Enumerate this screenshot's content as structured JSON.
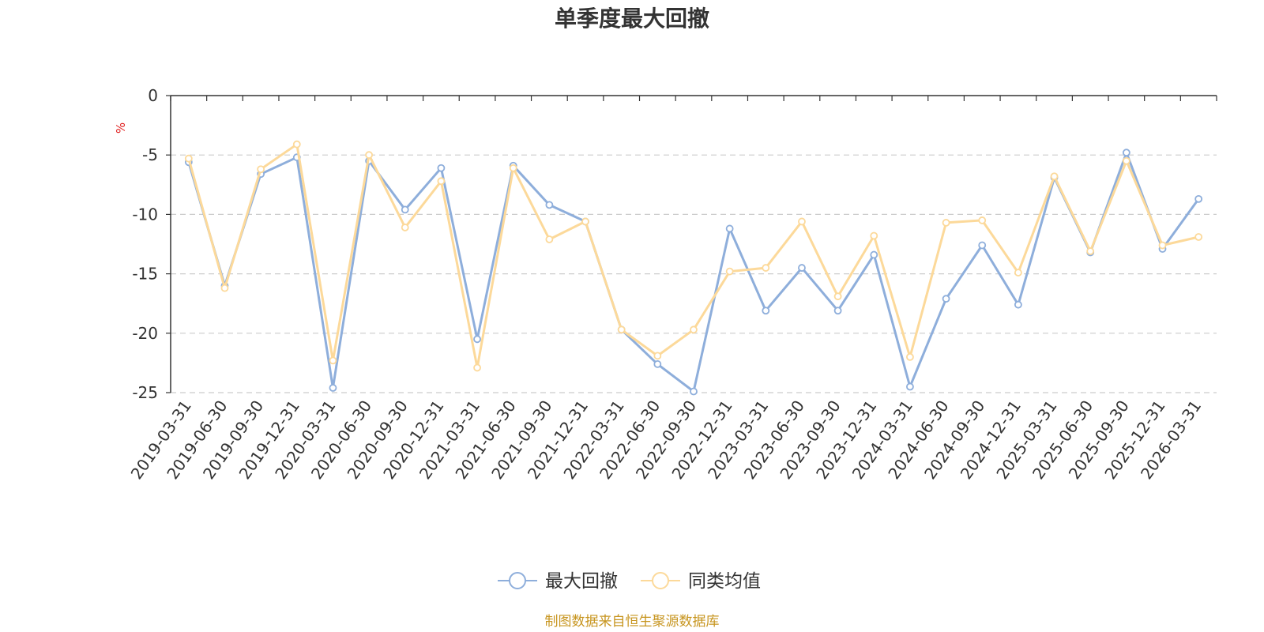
{
  "chart_data": {
    "type": "line",
    "title": "单季度最大回撤",
    "ylabel": "%",
    "xlabel": "",
    "ylim": [
      -25,
      0
    ],
    "yticks": [
      0,
      -5,
      -10,
      -15,
      -20,
      -25
    ],
    "grid": true,
    "legend_position": "bottom-center",
    "categories": [
      "2019-03-31",
      "2019-06-30",
      "2019-09-30",
      "2019-12-31",
      "2020-03-31",
      "2020-06-30",
      "2020-09-30",
      "2020-12-31",
      "2021-03-31",
      "2021-06-30",
      "2021-09-30",
      "2021-12-31",
      "2022-03-31",
      "2022-06-30",
      "2022-09-30",
      "2022-12-31",
      "2023-03-31",
      "2023-06-30",
      "2023-09-30",
      "2023-12-31",
      "2024-03-31",
      "2024-06-30",
      "2024-09-30",
      "2024-12-31",
      "2025-03-31",
      "2025-06-30",
      "2025-09-30",
      "2025-12-31",
      "2026-03-31"
    ],
    "series": [
      {
        "name": "最大回撤",
        "color": "#8eaedb",
        "values": [
          -5.6,
          -16.0,
          -6.6,
          -5.2,
          -24.6,
          -5.5,
          -9.6,
          -6.1,
          -20.5,
          -5.9,
          -9.2,
          -10.6,
          -19.7,
          -22.6,
          -24.9,
          -11.2,
          -18.1,
          -14.5,
          -18.1,
          -13.4,
          -24.5,
          -17.1,
          -12.6,
          -17.6,
          -6.9,
          -13.2,
          -4.8,
          -12.9,
          -8.7
        ]
      },
      {
        "name": "同类均值",
        "color": "#fcd99a",
        "values": [
          -5.3,
          -16.2,
          -6.2,
          -4.1,
          -22.3,
          -5.0,
          -11.1,
          -7.2,
          -22.9,
          -6.1,
          -12.1,
          -10.6,
          -19.7,
          -21.9,
          -19.7,
          -14.8,
          -14.5,
          -10.6,
          -16.9,
          -11.8,
          -22.0,
          -10.7,
          -10.5,
          -14.9,
          -6.8,
          -13.1,
          -5.5,
          -12.6,
          -11.9
        ]
      }
    ]
  },
  "footer": {
    "source": "制图数据来自恒生聚源数据库"
  },
  "colors": {
    "axis": "#333333",
    "grid": "#cccccc",
    "unit": "#e02020",
    "footer": "#c7951f"
  }
}
